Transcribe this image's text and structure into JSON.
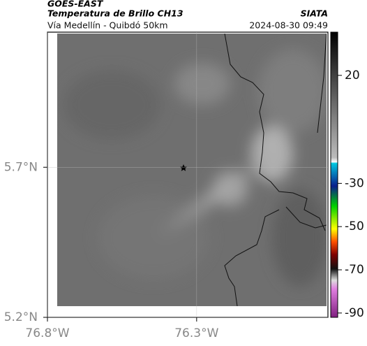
{
  "header": {
    "source": "GOES-EAST",
    "product": "Temperatura de Brillo CH13",
    "route": "Vía Medellín - Quibdó 50km",
    "agency": "SIATA",
    "timestamp": "2024-08-30 09:49"
  },
  "map": {
    "latlim": [
      5.2,
      6.15
    ],
    "lonlim": [
      -76.8,
      -75.86
    ],
    "lat_ticks": [
      {
        "value": 5.7,
        "label": "5.7°N"
      },
      {
        "value": 5.2,
        "label": "5.2°N"
      }
    ],
    "lon_ticks": [
      {
        "value": -76.8,
        "label": "76.8°W"
      },
      {
        "value": -76.3,
        "label": "76.3°W"
      }
    ]
  },
  "colorbar": {
    "lim": [
      -92,
      40
    ],
    "ticks": [
      20,
      -30,
      -50,
      -70,
      -90
    ]
  }
}
